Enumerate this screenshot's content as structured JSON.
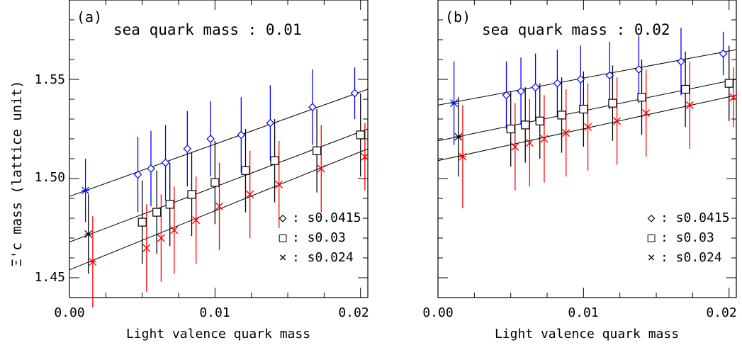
{
  "y_axis_label": "Ξ'c mass (lattice unit)",
  "panels": [
    {
      "tag": "(a)",
      "title": "sea quark mass : 0.01",
      "xlabel": "Light valence quark mass",
      "x_ticks": [
        "0.00",
        "0.01",
        "0.02"
      ],
      "y_ticks": [
        "1.45",
        "1.50",
        "1.55"
      ],
      "legend": [
        {
          "marker": "◇",
          "text": ": s0.0415"
        },
        {
          "marker": "□",
          "text": ": s0.03"
        },
        {
          "marker": "×",
          "text": ": s0.024"
        }
      ]
    },
    {
      "tag": "(b)",
      "title": "sea quark mass : 0.02",
      "xlabel": "Light valence quark mass",
      "x_ticks": [
        "0.00",
        "0.01",
        "0.02"
      ],
      "y_ticks": [],
      "legend": [
        {
          "marker": "◇",
          "text": ": s0.0415"
        },
        {
          "marker": "□",
          "text": ": s0.03"
        },
        {
          "marker": "×",
          "text": ": s0.024"
        }
      ]
    }
  ],
  "colors": {
    "s0.0415": "#0000ff",
    "s0.03": "#000000",
    "s0.024": "#ff0000"
  },
  "chart_data": [
    {
      "type": "scatter",
      "title": "sea quark mass : 0.01",
      "xlabel": "Light valence quark mass",
      "ylabel": "Ξ'c mass (lattice unit)",
      "xlim": [
        0.0,
        0.0205
      ],
      "ylim": [
        1.44,
        1.59
      ],
      "grid": false,
      "legend_position": "bottom-right",
      "series": [
        {
          "name": "s0.0415",
          "marker": "diamond",
          "color": "#0000ff",
          "x": [
            0.0047,
            0.0056,
            0.0066,
            0.0081,
            0.0097,
            0.0118,
            0.0138,
            0.0167,
            0.0196
          ],
          "y": [
            1.502,
            1.505,
            1.508,
            1.515,
            1.52,
            1.522,
            1.528,
            1.536,
            1.543
          ],
          "err": [
            0.019,
            0.019,
            0.019,
            0.019,
            0.019,
            0.019,
            0.019,
            0.019,
            0.013
          ],
          "chiral_x": 0.0011,
          "chiral_y": 1.494,
          "chiral_err": 0.016,
          "fit": [
            [
              0.0,
              1.491
            ],
            [
              0.0205,
              1.545
            ]
          ]
        },
        {
          "name": "s0.03",
          "marker": "square",
          "color": "#000000",
          "x": [
            0.005,
            0.006,
            0.0069,
            0.0084,
            0.01,
            0.0121,
            0.0141,
            0.017,
            0.02
          ],
          "y": [
            1.478,
            1.483,
            1.487,
            1.492,
            1.498,
            1.504,
            1.509,
            1.514,
            1.522
          ],
          "err": [
            0.021,
            0.021,
            0.021,
            0.021,
            0.021,
            0.021,
            0.021,
            0.021,
            0.021
          ],
          "chiral_x": 0.0013,
          "chiral_y": 1.472,
          "chiral_err": 0.02,
          "fit": [
            [
              0.0,
              1.468
            ],
            [
              0.0205,
              1.525
            ]
          ]
        },
        {
          "name": "s0.024",
          "marker": "cross",
          "color": "#ff0000",
          "x": [
            0.0053,
            0.0063,
            0.0072,
            0.0087,
            0.0103,
            0.0124,
            0.0144,
            0.0173,
            0.0203
          ],
          "y": [
            1.465,
            1.47,
            1.474,
            1.479,
            1.486,
            1.492,
            1.497,
            1.505,
            1.511
          ],
          "err": [
            0.022,
            0.022,
            0.022,
            0.022,
            0.022,
            0.022,
            0.022,
            0.022,
            0.017
          ],
          "chiral_x": 0.0016,
          "chiral_y": 1.458,
          "chiral_err": 0.023,
          "fit": [
            [
              0.0,
              1.454
            ],
            [
              0.0205,
              1.515
            ]
          ]
        }
      ]
    },
    {
      "type": "scatter",
      "title": "sea quark mass : 0.02",
      "xlabel": "Light valence quark mass",
      "ylabel": "",
      "xlim": [
        0.0,
        0.0205
      ],
      "ylim": [
        1.44,
        1.59
      ],
      "grid": false,
      "legend_position": "bottom-right",
      "series": [
        {
          "name": "s0.0415",
          "marker": "diamond",
          "color": "#0000ff",
          "x": [
            0.0047,
            0.0057,
            0.0067,
            0.0082,
            0.0098,
            0.0118,
            0.0138,
            0.0167,
            0.0196
          ],
          "y": [
            1.542,
            1.544,
            1.546,
            1.548,
            1.55,
            1.552,
            1.555,
            1.559,
            1.563
          ],
          "err": [
            0.017,
            0.017,
            0.017,
            0.017,
            0.017,
            0.017,
            0.017,
            0.017,
            0.011
          ],
          "chiral_x": 0.0011,
          "chiral_y": 1.538,
          "chiral_err": 0.021,
          "fit": [
            [
              0.0,
              1.537
            ],
            [
              0.0205,
              1.565
            ]
          ]
        },
        {
          "name": "s0.03",
          "marker": "square",
          "color": "#000000",
          "x": [
            0.005,
            0.006,
            0.007,
            0.0085,
            0.01,
            0.012,
            0.014,
            0.017,
            0.02
          ],
          "y": [
            1.525,
            1.527,
            1.529,
            1.532,
            1.535,
            1.538,
            1.541,
            1.545,
            1.548
          ],
          "err": [
            0.019,
            0.019,
            0.019,
            0.019,
            0.019,
            0.019,
            0.019,
            0.019,
            0.019
          ],
          "chiral_x": 0.0014,
          "chiral_y": 1.521,
          "chiral_err": 0.02,
          "fit": [
            [
              0.0,
              1.519
            ],
            [
              0.0205,
              1.55
            ]
          ]
        },
        {
          "name": "s0.024",
          "marker": "cross",
          "color": "#ff0000",
          "x": [
            0.0053,
            0.0063,
            0.0073,
            0.0088,
            0.0103,
            0.0123,
            0.0143,
            0.0173,
            0.0203
          ],
          "y": [
            1.516,
            1.518,
            1.52,
            1.523,
            1.526,
            1.529,
            1.533,
            1.537,
            1.541
          ],
          "err": [
            0.022,
            0.022,
            0.022,
            0.022,
            0.022,
            0.022,
            0.022,
            0.022,
            0.015
          ],
          "chiral_x": 0.0017,
          "chiral_y": 1.511,
          "chiral_err": 0.026,
          "fit": [
            [
              0.0,
              1.509
            ],
            [
              0.0205,
              1.542
            ]
          ]
        }
      ]
    }
  ]
}
